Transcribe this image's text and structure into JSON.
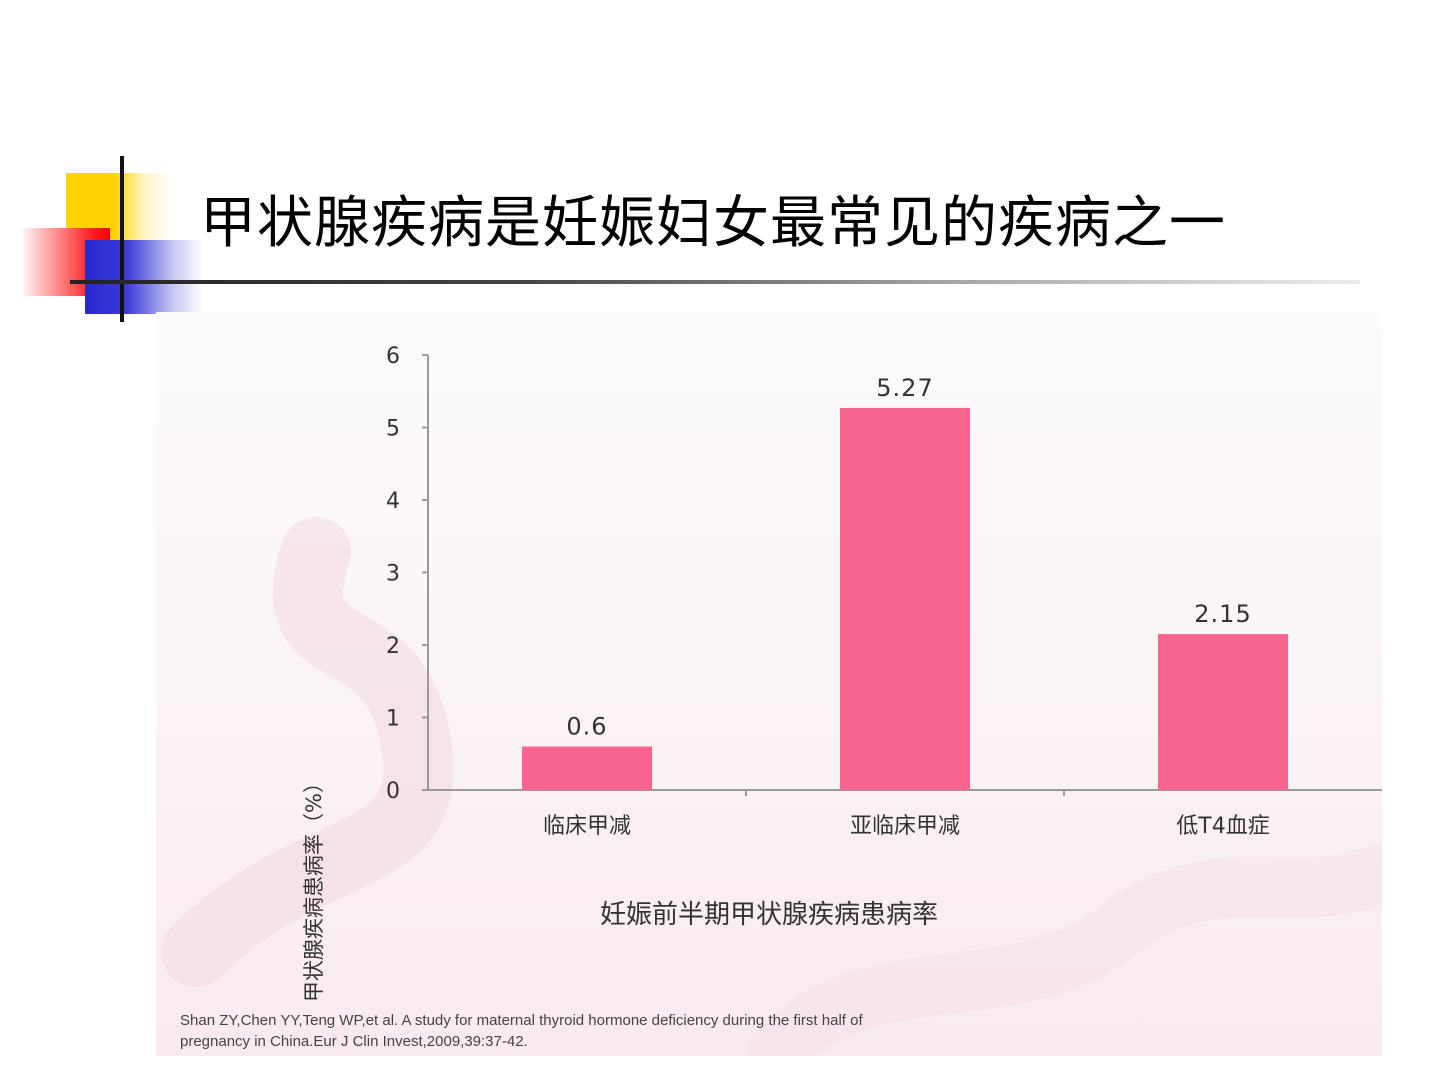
{
  "slide": {
    "title": "甲状腺疾病是妊娠妇女最常见的疾病之一"
  },
  "citation": {
    "line1": "Shan ZY,Chen YY,Teng WP,et al. A study for maternal thyroid hormone deficiency during the first half of",
    "line2": "pregnancy in China.Eur J Clin Invest,2009,39:37-42."
  },
  "colors": {
    "bar": "#f7648f",
    "axis": "#9a9a9a",
    "text": "#333333"
  },
  "chart_data": {
    "type": "bar",
    "title": "妊娠前半期甲状腺疾病患病率",
    "xlabel": "",
    "ylabel": "甲状腺疾病患病率（%）",
    "categories": [
      "临床甲减",
      "亚临床甲减",
      "低T4血症"
    ],
    "values": [
      0.6,
      5.27,
      2.15
    ],
    "value_labels": [
      "0.6",
      "5.27",
      "2.15"
    ],
    "ylim": [
      0,
      6
    ],
    "yticks": [
      "0",
      "1",
      "2",
      "3",
      "4",
      "5",
      "6"
    ],
    "grid": false,
    "legend": "none"
  }
}
